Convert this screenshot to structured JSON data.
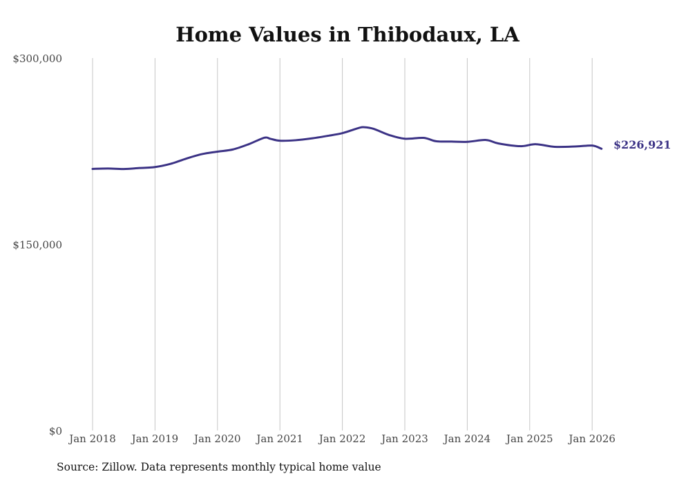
{
  "chart_data": {
    "type": "line",
    "title": "Home Values in Thibodaux, LA",
    "xlabel": "",
    "ylabel": "",
    "ylim": [
      0,
      300000
    ],
    "y_ticks": [
      {
        "value": 0,
        "label": "$0"
      },
      {
        "value": 150000,
        "label": "$150,000"
      },
      {
        "value": 300000,
        "label": "$300,000"
      }
    ],
    "x_ticks": [
      {
        "value": 2018,
        "label": "Jan 2018"
      },
      {
        "value": 2019,
        "label": "Jan 2019"
      },
      {
        "value": 2020,
        "label": "Jan 2020"
      },
      {
        "value": 2021,
        "label": "Jan 2021"
      },
      {
        "value": 2022,
        "label": "Jan 2022"
      },
      {
        "value": 2023,
        "label": "Jan 2023"
      },
      {
        "value": 2024,
        "label": "Jan 2024"
      },
      {
        "value": 2025,
        "label": "Jan 2025"
      },
      {
        "value": 2026,
        "label": "Jan 2026"
      }
    ],
    "xlim": [
      2018,
      2026.25
    ],
    "grid": "vertical",
    "series": [
      {
        "name": "Typical home value",
        "color": "#3b3285",
        "x": [
          2018.0,
          2018.25,
          2018.5,
          2018.75,
          2019.0,
          2019.25,
          2019.5,
          2019.75,
          2020.0,
          2020.25,
          2020.5,
          2020.75,
          2020.85,
          2021.0,
          2021.25,
          2021.5,
          2021.75,
          2022.0,
          2022.25,
          2022.35,
          2022.5,
          2022.75,
          2023.0,
          2023.3,
          2023.5,
          2023.75,
          2024.0,
          2024.3,
          2024.5,
          2024.85,
          2025.1,
          2025.4,
          2025.75,
          2026.0,
          2026.15
        ],
        "values": [
          210700,
          211000,
          210600,
          211400,
          212200,
          214800,
          219000,
          222600,
          224600,
          226400,
          230600,
          235800,
          234900,
          233400,
          233800,
          235200,
          237200,
          239500,
          243500,
          244300,
          243000,
          238000,
          235000,
          235700,
          233000,
          232700,
          232500,
          234000,
          231200,
          229000,
          230600,
          228500,
          228800,
          229500,
          226921
        ]
      }
    ],
    "end_label": "$226,921",
    "source": "Source: Zillow. Data represents monthly typical home value"
  }
}
